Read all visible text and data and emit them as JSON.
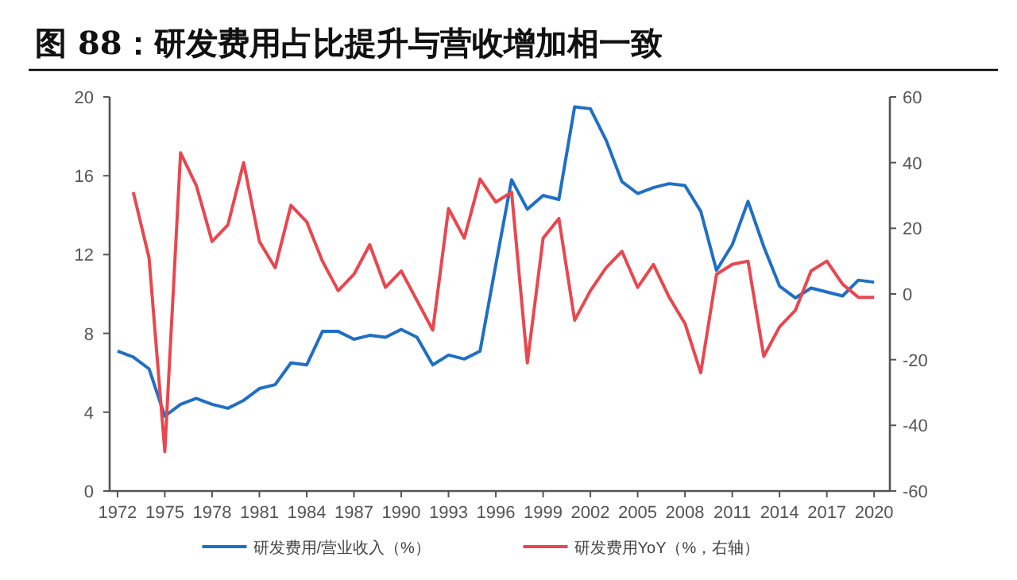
{
  "chart_data": {
    "type": "line",
    "title": "图 88：研发费用占比提升与营收增加相一致",
    "x": [
      1972,
      1973,
      1974,
      1975,
      1976,
      1977,
      1978,
      1979,
      1980,
      1981,
      1982,
      1983,
      1984,
      1985,
      1986,
      1987,
      1988,
      1989,
      1990,
      1991,
      1992,
      1993,
      1994,
      1995,
      1996,
      1997,
      1998,
      1999,
      2000,
      2001,
      2002,
      2003,
      2004,
      2005,
      2006,
      2007,
      2008,
      2009,
      2010,
      2011,
      2012,
      2013,
      2014,
      2015,
      2016,
      2017,
      2018,
      2019,
      2020
    ],
    "series": [
      {
        "name": "研发费用/营业收入（%）",
        "color": "#1f6fc5",
        "values": [
          7.1,
          6.8,
          6.2,
          3.8,
          4.4,
          4.7,
          4.4,
          4.2,
          4.6,
          5.2,
          5.4,
          6.5,
          6.4,
          8.1,
          8.1,
          7.7,
          7.9,
          7.8,
          8.2,
          7.8,
          6.4,
          6.9,
          6.7,
          7.1,
          11.5,
          15.8,
          14.3,
          15.0,
          14.8,
          19.5,
          19.4,
          17.8,
          15.7,
          15.1,
          15.4,
          15.6,
          15.5,
          14.2,
          11.2,
          12.5,
          14.7,
          12.4,
          10.4,
          9.8,
          10.3,
          10.1,
          9.9,
          10.7,
          10.6
        ]
      },
      {
        "name": "研发费用YoY（%，右轴）",
        "color": "#e8474f",
        "axis": "y2",
        "values": [
          null,
          31,
          11,
          -48,
          43,
          33,
          16,
          21,
          40,
          16,
          8,
          27,
          22,
          10,
          1,
          6,
          15,
          2,
          7,
          -2,
          -11,
          26,
          17,
          35,
          28,
          31,
          -21,
          17,
          23,
          -8,
          1,
          8,
          13,
          2,
          9,
          -1,
          -9,
          -24,
          6,
          9,
          10,
          -19,
          -10,
          -5,
          7,
          10,
          3,
          -1,
          -1
        ]
      }
    ],
    "xlim": [
      1971.5,
      2021
    ],
    "xticks": [
      1972,
      1975,
      1978,
      1981,
      1984,
      1987,
      1990,
      1993,
      1996,
      1999,
      2002,
      2005,
      2008,
      2011,
      2014,
      2017,
      2020
    ],
    "ylim": [
      0,
      20
    ],
    "yticks": [
      0,
      4,
      8,
      12,
      16,
      20
    ],
    "y2lim": [
      -60,
      60
    ],
    "y2ticks": [
      -60,
      -40,
      -20,
      0,
      20,
      40,
      60
    ],
    "legend": "bottom",
    "grid": false
  }
}
